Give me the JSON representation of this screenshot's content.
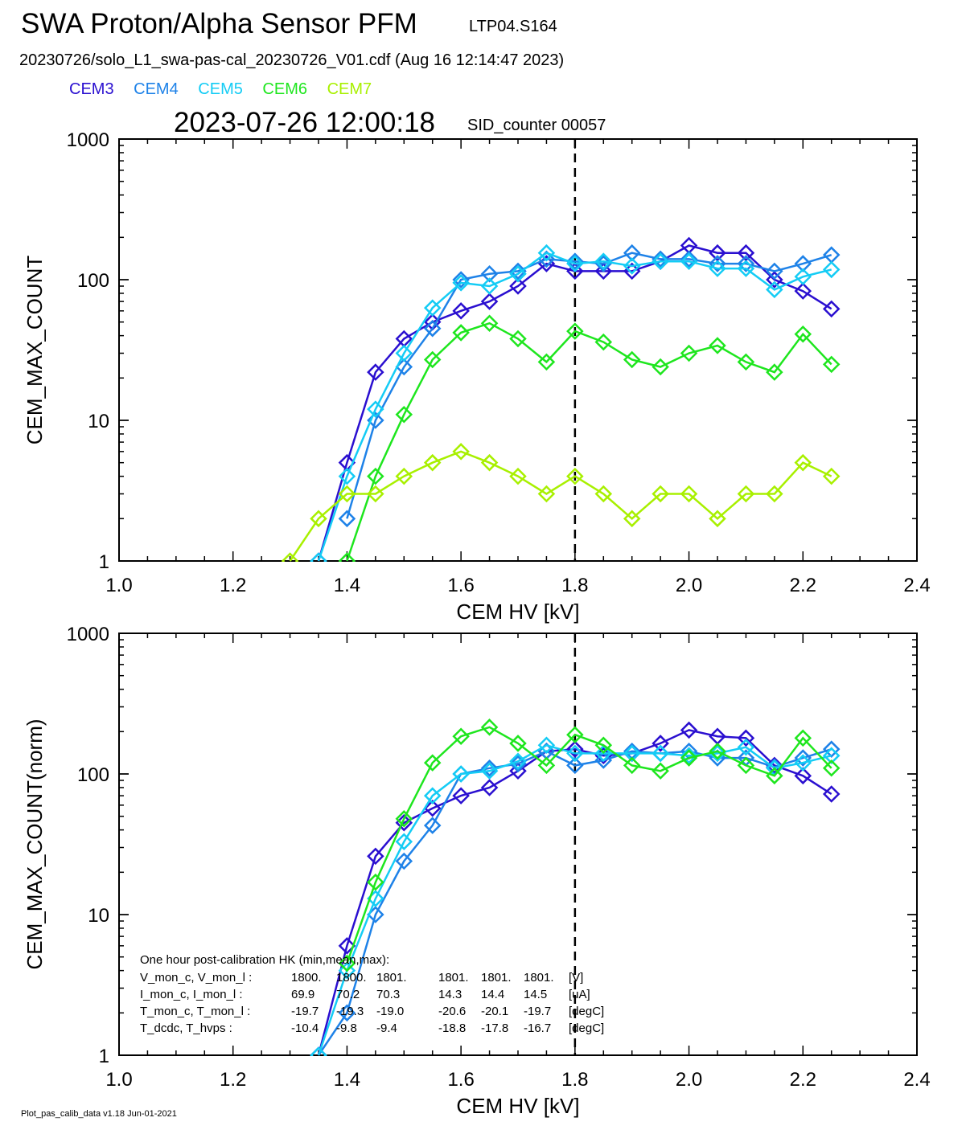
{
  "header": {
    "title": "SWA Proton/Alpha Sensor PFM",
    "title_sub": "LTP04.S164",
    "file_line": "20230726/solo_L1_swa-pas-cal_20230726_V01.cdf  (Aug 16 12:14:47 2023)",
    "timestamp": "2023-07-26 12:00:18",
    "sid": "SID_counter 00057"
  },
  "legend": [
    {
      "name": "CEM3",
      "color": "#2a0fd0"
    },
    {
      "name": "CEM4",
      "color": "#1e82e8"
    },
    {
      "name": "CEM5",
      "color": "#14ccf5"
    },
    {
      "name": "CEM6",
      "color": "#1ee61e"
    },
    {
      "name": "CEM7",
      "color": "#a8f000"
    }
  ],
  "footer": "Plot_pas_calib_data v1.18 Jun-01-2021",
  "hk": {
    "title": "One hour post-calibration HK (min,mean,max):",
    "rows": [
      {
        "label": "V_mon_c, V_mon_l :",
        "c": [
          "1800.",
          "1800.",
          "1801."
        ],
        "l": [
          "1801.",
          "1801.",
          "1801."
        ],
        "unit": "[V]"
      },
      {
        "label": "I_mon_c,  I_mon_l :",
        "c": [
          "69.9",
          "70.2",
          "70.3"
        ],
        "l": [
          "14.3",
          "14.4",
          "14.5"
        ],
        "unit": "[uA]"
      },
      {
        "label": "T_mon_c, T_mon_l :",
        "c": [
          "-19.7",
          "-19.3",
          "-19.0"
        ],
        "l": [
          "-20.6",
          "-20.1",
          "-19.7"
        ],
        "unit": "[degC]"
      },
      {
        "label": "T_dcdc,    T_hvps :",
        "c": [
          "-10.4",
          "-9.8",
          "-9.4"
        ],
        "l": [
          "-18.8",
          "-17.8",
          "-16.7"
        ],
        "unit": "[degC]"
      }
    ]
  },
  "chart_data": [
    {
      "type": "line",
      "xlabel": "CEM HV [kV]",
      "ylabel": "CEM_MAX_COUNT",
      "xlim": [
        1.0,
        2.4
      ],
      "ylim": [
        1,
        1000
      ],
      "yscale": "log",
      "x_ticks": [
        "1.0",
        "1.2",
        "1.4",
        "1.6",
        "1.8",
        "2.0",
        "2.2",
        "2.4"
      ],
      "y_ticks": [
        "1",
        "10",
        "100",
        "1000"
      ],
      "vline_x": 1.8,
      "x": [
        1.3,
        1.35,
        1.4,
        1.45,
        1.5,
        1.55,
        1.6,
        1.65,
        1.7,
        1.75,
        1.8,
        1.85,
        1.9,
        1.95,
        2.0,
        2.05,
        2.1,
        2.15,
        2.2,
        2.25
      ],
      "series": [
        {
          "name": "CEM3",
          "values": [
            null,
            1,
            5,
            22,
            38,
            50,
            60,
            70,
            90,
            130,
            115,
            115,
            115,
            135,
            175,
            155,
            155,
            100,
            83,
            62
          ]
        },
        {
          "name": "CEM4",
          "values": [
            null,
            null,
            2,
            10,
            24,
            45,
            100,
            110,
            115,
            140,
            135,
            130,
            155,
            140,
            140,
            130,
            130,
            115,
            130,
            150
          ]
        },
        {
          "name": "CEM5",
          "values": [
            null,
            1,
            4,
            12,
            30,
            63,
            95,
            90,
            110,
            155,
            130,
            135,
            125,
            135,
            135,
            120,
            120,
            85,
            105,
            118
          ]
        },
        {
          "name": "CEM6",
          "values": [
            null,
            null,
            1,
            4,
            11,
            27,
            42,
            49,
            38,
            26,
            43,
            36,
            27,
            24,
            30,
            34,
            26,
            22,
            41,
            25
          ]
        },
        {
          "name": "CEM7",
          "values": [
            1,
            2,
            3,
            3,
            4,
            5,
            6,
            5,
            4,
            3,
            4,
            3,
            2,
            3,
            3,
            2,
            3,
            3,
            5,
            4
          ]
        }
      ]
    },
    {
      "type": "line",
      "xlabel": "CEM HV [kV]",
      "ylabel": "CEM_MAX_COUNT(norm)",
      "xlim": [
        1.0,
        2.4
      ],
      "ylim": [
        1,
        1000
      ],
      "yscale": "log",
      "x_ticks": [
        "1.0",
        "1.2",
        "1.4",
        "1.6",
        "1.8",
        "2.0",
        "2.2",
        "2.4"
      ],
      "y_ticks": [
        "1",
        "10",
        "100",
        "1000"
      ],
      "vline_x": 1.8,
      "x": [
        1.35,
        1.4,
        1.45,
        1.5,
        1.55,
        1.6,
        1.65,
        1.7,
        1.75,
        1.8,
        1.85,
        1.9,
        1.95,
        2.0,
        2.05,
        2.1,
        2.15,
        2.2,
        2.25
      ],
      "series": [
        {
          "name": "CEM3",
          "values": [
            1,
            6,
            26,
            45,
            57,
            70,
            80,
            105,
            145,
            150,
            135,
            140,
            165,
            205,
            185,
            180,
            115,
            97,
            72
          ]
        },
        {
          "name": "CEM4",
          "values": [
            1,
            2,
            10,
            24,
            43,
            100,
            110,
            118,
            145,
            115,
            125,
            145,
            140,
            145,
            130,
            130,
            112,
            130,
            150
          ]
        },
        {
          "name": "CEM5",
          "values": [
            1,
            4,
            13,
            33,
            70,
            100,
            105,
            123,
            160,
            140,
            140,
            140,
            140,
            135,
            140,
            155,
            110,
            120,
            135
          ]
        },
        {
          "name": "CEM6",
          "values": [
            null,
            4.5,
            17,
            48,
            120,
            185,
            215,
            165,
            115,
            190,
            160,
            115,
            105,
            130,
            145,
            115,
            97,
            180,
            110
          ]
        }
      ]
    }
  ]
}
